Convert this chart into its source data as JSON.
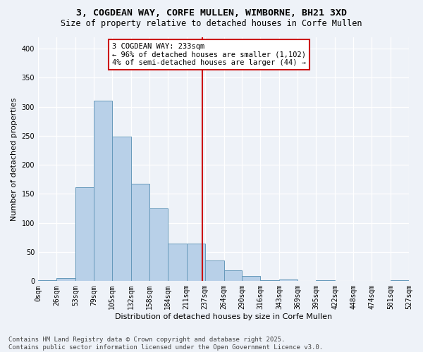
{
  "title1": "3, COGDEAN WAY, CORFE MULLEN, WIMBORNE, BH21 3XD",
  "title2": "Size of property relative to detached houses in Corfe Mullen",
  "xlabel": "Distribution of detached houses by size in Corfe Mullen",
  "ylabel": "Number of detached properties",
  "bin_edges": [
    0,
    26,
    53,
    79,
    105,
    132,
    158,
    184,
    211,
    237,
    264,
    290,
    316,
    343,
    369,
    395,
    422,
    448,
    474,
    501,
    527
  ],
  "bin_labels": [
    "0sqm",
    "26sqm",
    "53sqm",
    "79sqm",
    "105sqm",
    "132sqm",
    "158sqm",
    "184sqm",
    "211sqm",
    "237sqm",
    "264sqm",
    "290sqm",
    "316sqm",
    "343sqm",
    "369sqm",
    "395sqm",
    "422sqm",
    "448sqm",
    "474sqm",
    "501sqm",
    "527sqm"
  ],
  "counts": [
    2,
    5,
    162,
    311,
    249,
    167,
    125,
    65,
    65,
    35,
    18,
    9,
    2,
    3,
    0,
    2,
    0,
    1,
    0,
    2
  ],
  "bar_color": "#b8d0e8",
  "bar_edge_color": "#6699bb",
  "vline_x": 233,
  "vline_color": "#cc0000",
  "annotation_text": "3 COGDEAN WAY: 233sqm\n← 96% of detached houses are smaller (1,102)\n4% of semi-detached houses are larger (44) →",
  "annotation_box_color": "#cc0000",
  "yticks": [
    0,
    50,
    100,
    150,
    200,
    250,
    300,
    350,
    400
  ],
  "ylim": [
    0,
    420
  ],
  "bg_color": "#eef2f8",
  "footer_text": "Contains HM Land Registry data © Crown copyright and database right 2025.\nContains public sector information licensed under the Open Government Licence v3.0.",
  "title_fontsize": 9.5,
  "subtitle_fontsize": 8.5,
  "axis_label_fontsize": 8,
  "tick_fontsize": 7,
  "footer_fontsize": 6.5,
  "annotation_fontsize": 7.5
}
